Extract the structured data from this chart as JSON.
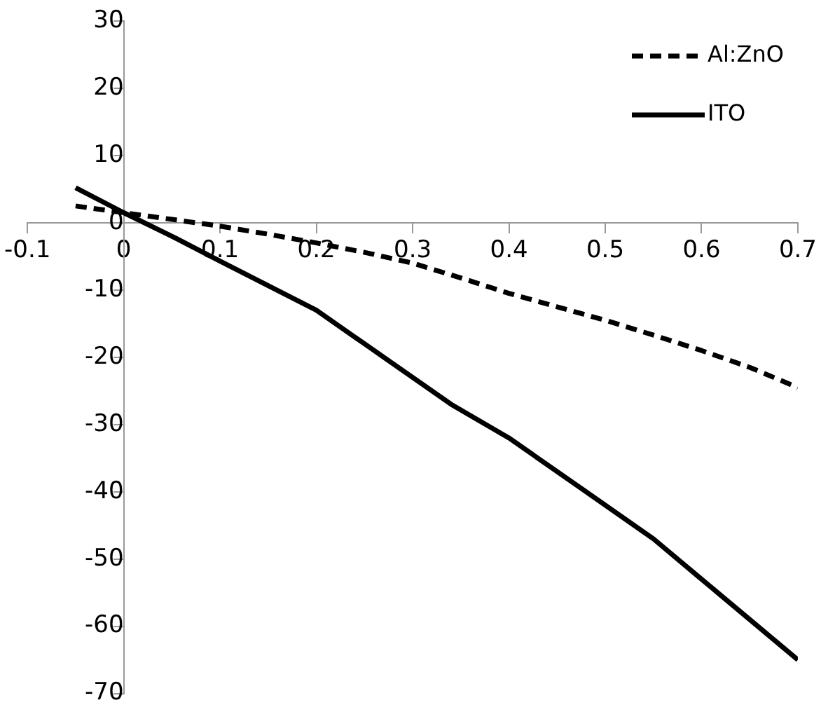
{
  "chart_data": {
    "type": "line",
    "xlim": [
      -0.1,
      0.7
    ],
    "xticks": [
      -0.1,
      0,
      0.1,
      0.2,
      0.3,
      0.4,
      0.5,
      0.6,
      0.7
    ],
    "ylim": [
      -70,
      30
    ],
    "yticks": [
      -70,
      -60,
      -50,
      -40,
      -30,
      -20,
      -10,
      0,
      10,
      20,
      30
    ],
    "grid": false,
    "legend": "top right",
    "marker": "none",
    "series": [
      {
        "name": "Al:ZnO",
        "color": "#000000",
        "line_style": "dashed",
        "x": [
          -0.05,
          0,
          0.05,
          0.1,
          0.15,
          0.2,
          0.25,
          0.3,
          0.35,
          0.4,
          0.45,
          0.5,
          0.55,
          0.6,
          0.65,
          0.7
        ],
        "values": [
          2.5,
          1.5,
          0.5,
          -0.5,
          -1.7,
          -3,
          -4.4,
          -6,
          -8.2,
          -10.5,
          -12.5,
          -14.5,
          -16.7,
          -19,
          -21.5,
          -24.5
        ]
      },
      {
        "name": "ITO",
        "color": "#000000",
        "line_style": "solid",
        "x": [
          -0.05,
          0,
          0.05,
          0.1,
          0.2,
          0.26,
          0.34,
          0.4,
          0.48,
          0.55,
          0.6,
          0.65,
          0.7
        ],
        "values": [
          5.2,
          1.5,
          -2,
          -5.7,
          -13,
          -19,
          -27,
          -32,
          -40,
          -47,
          -53,
          -59,
          -65
        ]
      }
    ]
  }
}
